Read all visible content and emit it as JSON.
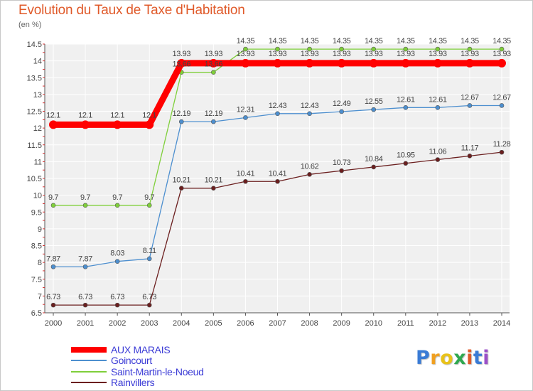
{
  "chart_data": {
    "type": "line",
    "title": "Evolution du Taux de Taxe d'Habitation",
    "subtitle": "(en %)",
    "x": [
      "2000",
      "2001",
      "2002",
      "2003",
      "2004",
      "2005",
      "2006",
      "2007",
      "2008",
      "2009",
      "2010",
      "2011",
      "2012",
      "2013",
      "2014"
    ],
    "ylim": [
      6.5,
      14.5
    ],
    "yticks": [
      "6.5",
      "7",
      "7.5",
      "8",
      "8.5",
      "9",
      "9.5",
      "10",
      "10.5",
      "11",
      "11.5",
      "12",
      "12.5",
      "13",
      "13.5",
      "14",
      "14.5"
    ],
    "grid": true,
    "legend_position": "bottom-left",
    "series": [
      {
        "name": "AUX MARAIS",
        "color": "#ff0000",
        "values": [
          12.1,
          12.1,
          12.1,
          12.1,
          13.93,
          13.93,
          13.93,
          13.93,
          13.93,
          13.93,
          13.93,
          13.93,
          13.93,
          13.93,
          13.93
        ],
        "labels": [
          "12.1",
          "12.1",
          "12.1",
          "12.1",
          "13.93",
          "13.93",
          "13.93",
          "13.93",
          "13.93",
          "13.93",
          "13.93",
          "13.93",
          "13.93",
          "13.93",
          "13.93"
        ]
      },
      {
        "name": "Goincourt",
        "color": "#4d8fcf",
        "values": [
          7.87,
          7.87,
          8.03,
          8.11,
          12.19,
          12.19,
          12.31,
          12.43,
          12.43,
          12.49,
          12.55,
          12.61,
          12.61,
          12.67,
          12.67
        ],
        "labels": [
          "7.87",
          "7.87",
          "8.03",
          "8.11",
          "12.19",
          "12.19",
          "12.31",
          "12.43",
          "12.43",
          "12.49",
          "12.55",
          "12.61",
          "12.61",
          "12.67",
          "12.67"
        ]
      },
      {
        "name": "Saint-Martin-le-Noeud",
        "color": "#7fcf3a",
        "values": [
          9.7,
          9.7,
          9.7,
          9.7,
          13.66,
          13.66,
          14.35,
          14.35,
          14.35,
          14.35,
          14.35,
          14.35,
          14.35,
          14.35,
          14.35
        ],
        "labels": [
          "9.7",
          "9.7",
          "9.7",
          "9.7",
          "13.66",
          "13.66",
          "14.35",
          "14.35",
          "14.35",
          "14.35",
          "14.35",
          "14.35",
          "14.35",
          "14.35",
          "14.35"
        ]
      },
      {
        "name": "Rainvillers",
        "color": "#6b1f1f",
        "values": [
          6.73,
          6.73,
          6.73,
          6.73,
          10.21,
          10.21,
          10.41,
          10.41,
          10.62,
          10.73,
          10.84,
          10.95,
          11.06,
          11.17,
          11.28
        ],
        "labels": [
          "6.73",
          "6.73",
          "6.73",
          "6.73",
          "10.21",
          "10.21",
          "10.41",
          "10.41",
          "10.62",
          "10.73",
          "10.84",
          "10.95",
          "11.06",
          "11.17",
          "11.28"
        ]
      }
    ]
  },
  "logo": {
    "letters": [
      "P",
      "r",
      "o",
      "x",
      "i",
      "t",
      "i"
    ]
  }
}
